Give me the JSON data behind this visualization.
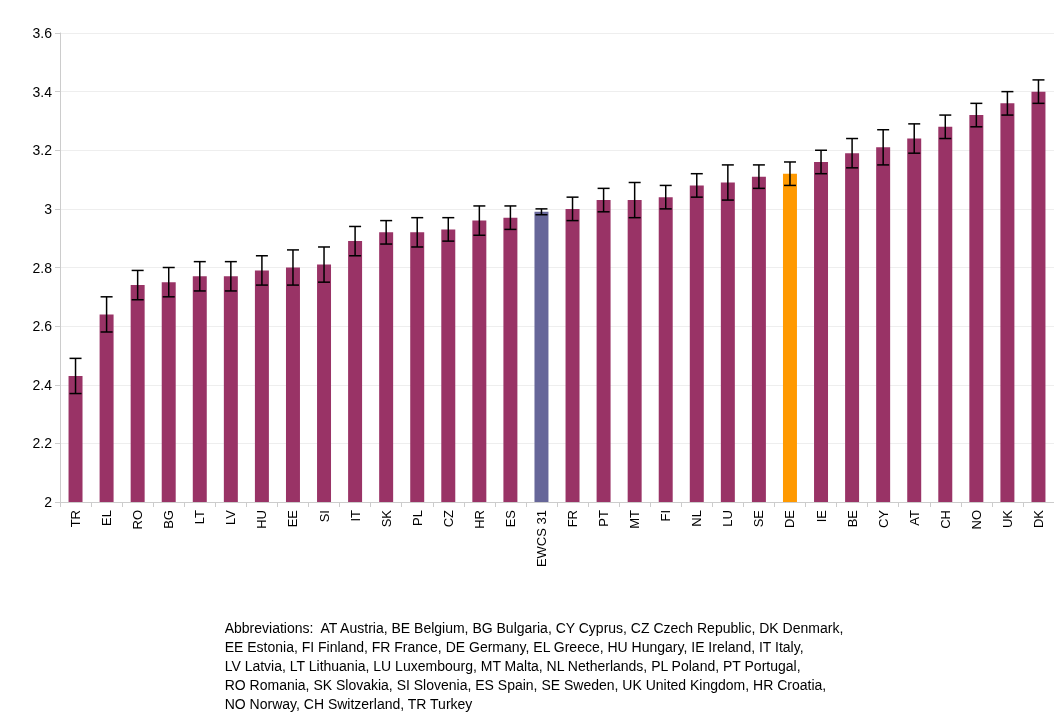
{
  "chart_data": {
    "type": "bar",
    "categories": [
      "TR",
      "EL",
      "RO",
      "BG",
      "LT",
      "LV",
      "HU",
      "EE",
      "SI",
      "IT",
      "SK",
      "PL",
      "CZ",
      "HR",
      "ES",
      "EWCS 31",
      "FR",
      "PT",
      "MT",
      "FI",
      "NL",
      "LU",
      "SE",
      "DE",
      "IE",
      "BE",
      "CY",
      "AT",
      "CH",
      "NO",
      "UK",
      "DK"
    ],
    "values": [
      2.43,
      2.64,
      2.74,
      2.75,
      2.77,
      2.77,
      2.79,
      2.8,
      2.81,
      2.89,
      2.92,
      2.92,
      2.93,
      2.96,
      2.97,
      2.99,
      3.0,
      3.03,
      3.03,
      3.04,
      3.08,
      3.09,
      3.11,
      3.12,
      3.16,
      3.19,
      3.21,
      3.24,
      3.28,
      3.32,
      3.36,
      3.4
    ],
    "errors": [
      0.06,
      0.06,
      0.05,
      0.05,
      0.05,
      0.05,
      0.05,
      0.06,
      0.06,
      0.05,
      0.04,
      0.05,
      0.04,
      0.05,
      0.04,
      0.01,
      0.04,
      0.04,
      0.06,
      0.04,
      0.04,
      0.06,
      0.04,
      0.04,
      0.04,
      0.05,
      0.06,
      0.05,
      0.04,
      0.04,
      0.04,
      0.04
    ],
    "colors": [
      "#993366",
      "#993366",
      "#993366",
      "#993366",
      "#993366",
      "#993366",
      "#993366",
      "#993366",
      "#993366",
      "#993366",
      "#993366",
      "#993366",
      "#993366",
      "#993366",
      "#993366",
      "#666699",
      "#993366",
      "#993366",
      "#993366",
      "#993366",
      "#993366",
      "#993366",
      "#993366",
      "#ff9900",
      "#993366",
      "#993366",
      "#993366",
      "#993366",
      "#993366",
      "#993366",
      "#993366",
      "#993366"
    ],
    "ylim": [
      2,
      3.6
    ],
    "yticks": [
      2,
      2.2,
      2.4,
      2.6,
      2.8,
      3,
      3.2,
      3.4,
      3.6
    ],
    "grid": "y",
    "annotations": [
      "Abbreviations:  AT Austria, BE Belgium, BG Bulgaria, CY Cyprus, CZ Czech Republic, DK Denmark,\nEE Estonia, FI Finland, FR France, DE Germany, EL Greece, HU Hungary, IE Ireland, IT Italy,\nLV Latvia, LT Lithuania, LU Luxembourg, MT Malta, NL Netherlands, PL Poland, PT Portugal,\nRO Romania, SK Slovakia, SI Slovenia, ES Spain, SE Sweden, UK United Kingdom, HR Croatia,\nNO Norway, CH Switzerland, TR Turkey"
    ]
  }
}
